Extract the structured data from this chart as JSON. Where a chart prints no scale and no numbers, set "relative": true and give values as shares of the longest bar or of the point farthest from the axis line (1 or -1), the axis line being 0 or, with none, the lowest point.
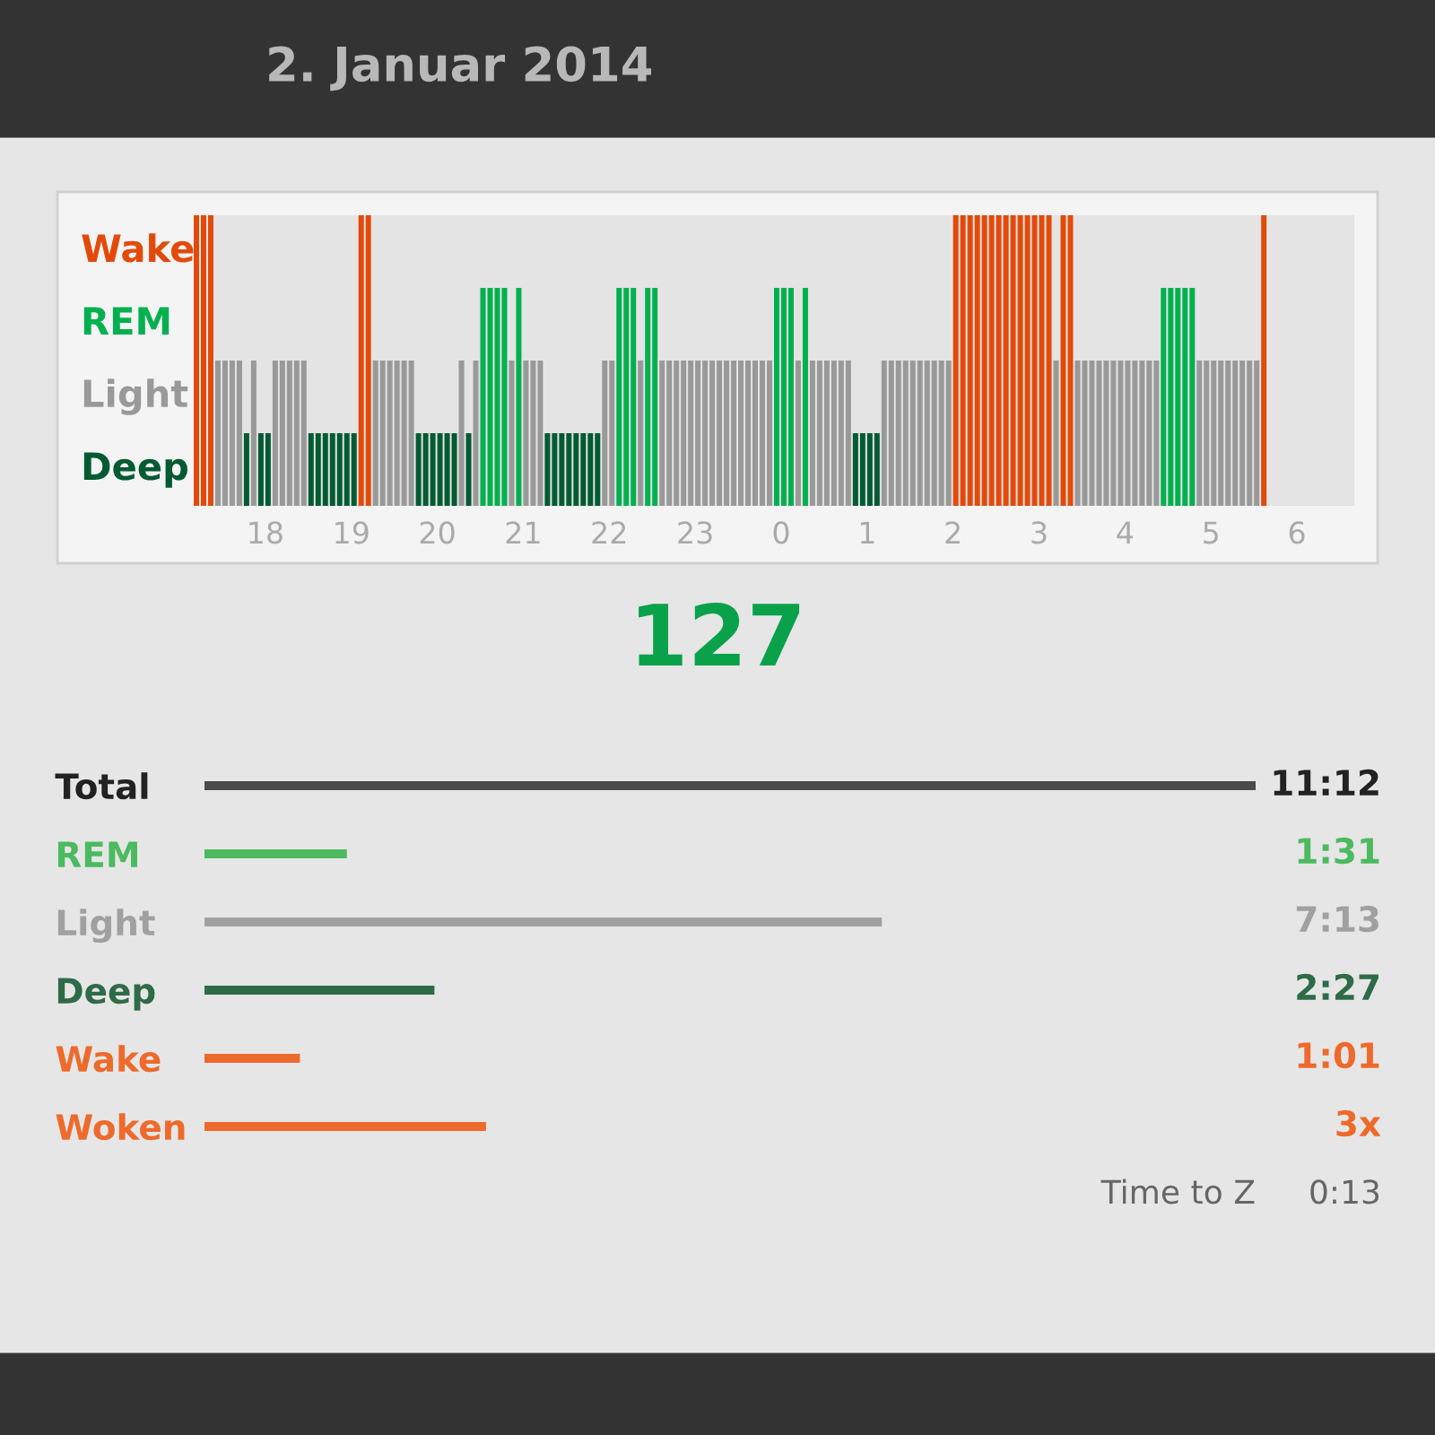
{
  "chart_data": [
    {
      "type": "bar",
      "title": "2. Januar 2014",
      "x": [
        "2014-01-01T17:10",
        "2014-01-01T17:15",
        "2014-01-01T17:20",
        "2014-01-01T17:25",
        "2014-01-01T17:30",
        "2014-01-01T17:35",
        "2014-01-01T17:40",
        "2014-01-01T17:45",
        "2014-01-01T17:50",
        "2014-01-01T17:55",
        "2014-01-01T18:00",
        "2014-01-01T18:05",
        "2014-01-01T18:10",
        "2014-01-01T18:15",
        "2014-01-01T18:20",
        "2014-01-01T18:25",
        "2014-01-01T18:30",
        "2014-01-01T18:35",
        "2014-01-01T18:40",
        "2014-01-01T18:45",
        "2014-01-01T18:50",
        "2014-01-01T18:55",
        "2014-01-01T19:00",
        "2014-01-01T19:05",
        "2014-01-01T19:10",
        "2014-01-01T19:15",
        "2014-01-01T19:20",
        "2014-01-01T19:25",
        "2014-01-01T19:30",
        "2014-01-01T19:35",
        "2014-01-01T19:40",
        "2014-01-01T19:45",
        "2014-01-01T19:50",
        "2014-01-01T19:55",
        "2014-01-01T20:00",
        "2014-01-01T20:05",
        "2014-01-01T20:10",
        "2014-01-01T20:15",
        "2014-01-01T20:20",
        "2014-01-01T20:25",
        "2014-01-01T20:30",
        "2014-01-01T20:35",
        "2014-01-01T20:40",
        "2014-01-01T20:45",
        "2014-01-01T20:50",
        "2014-01-01T20:55",
        "2014-01-01T21:00",
        "2014-01-01T21:05",
        "2014-01-01T21:10",
        "2014-01-01T21:15",
        "2014-01-01T21:20",
        "2014-01-01T21:25",
        "2014-01-01T21:30",
        "2014-01-01T21:35",
        "2014-01-01T21:40",
        "2014-01-01T21:45",
        "2014-01-01T21:50",
        "2014-01-01T21:55",
        "2014-01-01T22:00",
        "2014-01-01T22:05",
        "2014-01-01T22:10",
        "2014-01-01T22:15",
        "2014-01-01T22:20",
        "2014-01-01T22:25",
        "2014-01-01T22:30",
        "2014-01-01T22:35",
        "2014-01-01T22:40",
        "2014-01-01T22:45",
        "2014-01-01T22:50",
        "2014-01-01T22:55",
        "2014-01-01T23:00",
        "2014-01-01T23:05",
        "2014-01-01T23:10",
        "2014-01-01T23:15",
        "2014-01-01T23:20",
        "2014-01-01T23:25",
        "2014-01-01T23:30",
        "2014-01-01T23:35",
        "2014-01-01T23:40",
        "2014-01-01T23:45",
        "2014-01-01T23:50",
        "2014-01-01T23:55",
        "2014-01-02T00:00",
        "2014-01-02T00:05",
        "2014-01-02T00:10",
        "2014-01-02T00:15",
        "2014-01-02T00:20",
        "2014-01-02T00:25",
        "2014-01-02T00:30",
        "2014-01-02T00:35",
        "2014-01-02T00:40",
        "2014-01-02T00:45",
        "2014-01-02T00:50",
        "2014-01-02T00:55",
        "2014-01-02T01:00",
        "2014-01-02T01:05",
        "2014-01-02T01:10",
        "2014-01-02T01:15",
        "2014-01-02T01:20",
        "2014-01-02T01:25",
        "2014-01-02T01:30",
        "2014-01-02T01:35",
        "2014-01-02T01:40",
        "2014-01-02T01:45",
        "2014-01-02T01:50",
        "2014-01-02T01:55",
        "2014-01-02T02:00",
        "2014-01-02T02:05",
        "2014-01-02T02:10",
        "2014-01-02T02:15",
        "2014-01-02T02:20",
        "2014-01-02T02:25",
        "2014-01-02T02:30",
        "2014-01-02T02:35",
        "2014-01-02T02:40",
        "2014-01-02T02:45",
        "2014-01-02T02:50",
        "2014-01-02T02:55",
        "2014-01-02T03:00",
        "2014-01-02T03:05",
        "2014-01-02T03:10",
        "2014-01-02T03:15",
        "2014-01-02T03:20",
        "2014-01-02T03:25",
        "2014-01-02T03:30",
        "2014-01-02T03:35",
        "2014-01-02T03:40",
        "2014-01-02T03:45",
        "2014-01-02T03:50",
        "2014-01-02T03:55",
        "2014-01-02T04:00",
        "2014-01-02T04:05",
        "2014-01-02T04:10",
        "2014-01-02T04:15",
        "2014-01-02T04:20",
        "2014-01-02T04:25",
        "2014-01-02T04:30",
        "2014-01-02T04:35",
        "2014-01-02T04:40",
        "2014-01-02T04:45",
        "2014-01-02T04:50",
        "2014-01-02T04:55",
        "2014-01-02T05:00",
        "2014-01-02T05:05",
        "2014-01-02T05:10",
        "2014-01-02T05:15",
        "2014-01-02T05:20",
        "2014-01-02T05:25",
        "2014-01-02T05:30",
        "2014-01-02T05:35"
      ],
      "relative": true,
      "series": [
        {
          "name": "Wake",
          "color": "#e34a0a",
          "values": [
            1,
            1,
            1,
            null,
            null,
            null,
            null,
            null,
            null,
            null,
            null,
            null,
            null,
            null,
            null,
            null,
            null,
            null,
            null,
            null,
            null,
            null,
            null,
            1,
            1,
            null,
            null,
            null,
            null,
            null,
            null,
            null,
            null,
            null,
            null,
            null,
            null,
            null,
            null,
            null,
            null,
            null,
            null,
            null,
            null,
            null,
            null,
            null,
            null,
            null,
            null,
            null,
            null,
            null,
            null,
            null,
            null,
            null,
            null,
            null,
            null,
            null,
            null,
            null,
            null,
            null,
            null,
            null,
            null,
            null,
            null,
            null,
            null,
            null,
            null,
            null,
            null,
            null,
            null,
            null,
            null,
            null,
            null,
            null,
            null,
            null,
            null,
            null,
            null,
            null,
            null,
            null,
            null,
            null,
            null,
            null,
            null,
            null,
            null,
            null,
            null,
            null,
            null,
            null,
            null,
            null,
            1,
            1,
            1,
            1,
            1,
            1,
            1,
            1,
            1,
            1,
            1,
            1,
            1,
            1,
            null,
            1,
            1,
            null,
            null,
            null,
            null,
            null,
            null,
            null,
            null,
            null,
            null,
            null,
            null,
            null,
            null,
            null,
            null,
            null,
            null,
            null,
            null,
            null,
            null,
            null,
            null,
            null,
            null,
            1
          ]
        },
        {
          "name": "REM",
          "color": "#00b04f",
          "values": [
            null,
            null,
            null,
            null,
            null,
            null,
            null,
            null,
            null,
            null,
            null,
            null,
            null,
            null,
            null,
            null,
            null,
            null,
            null,
            null,
            null,
            null,
            null,
            null,
            null,
            null,
            null,
            null,
            null,
            null,
            null,
            null,
            null,
            null,
            null,
            null,
            null,
            null,
            null,
            null,
            0.75,
            0.75,
            0.75,
            0.75,
            null,
            0.75,
            null,
            null,
            null,
            null,
            null,
            null,
            null,
            null,
            null,
            null,
            null,
            null,
            null,
            0.75,
            0.75,
            0.75,
            null,
            0.75,
            0.75,
            null,
            null,
            null,
            null,
            null,
            null,
            null,
            null,
            null,
            null,
            null,
            null,
            null,
            null,
            null,
            null,
            0.75,
            0.75,
            0.75,
            null,
            0.75,
            null,
            null,
            null,
            null,
            null,
            null,
            null,
            null,
            null,
            null,
            null,
            null,
            null,
            null,
            null,
            null,
            null,
            null,
            null,
            null,
            null,
            null,
            null,
            null,
            null,
            null,
            null,
            null,
            null,
            null,
            null,
            null,
            null,
            null,
            null,
            null,
            null,
            null,
            null,
            null,
            null,
            null,
            null,
            null,
            null,
            null,
            null,
            null,
            null,
            0.75,
            0.75,
            0.75,
            0.75,
            0.75,
            null,
            null,
            null,
            null,
            null,
            null,
            null,
            null,
            null,
            null
          ]
        },
        {
          "name": "Light",
          "color": "#999999",
          "values": [
            null,
            null,
            null,
            0.5,
            0.5,
            0.5,
            0.5,
            null,
            0.5,
            null,
            null,
            0.5,
            0.5,
            0.5,
            0.5,
            0.5,
            null,
            null,
            null,
            null,
            null,
            null,
            null,
            null,
            null,
            0.5,
            0.5,
            0.5,
            0.5,
            0.5,
            0.5,
            null,
            null,
            null,
            null,
            null,
            null,
            0.5,
            null,
            0.5,
            null,
            null,
            null,
            null,
            0.5,
            null,
            0.5,
            0.5,
            0.5,
            null,
            null,
            null,
            null,
            null,
            null,
            null,
            null,
            0.5,
            0.5,
            null,
            null,
            null,
            0.5,
            null,
            null,
            0.5,
            0.5,
            0.5,
            0.5,
            0.5,
            0.5,
            0.5,
            0.5,
            0.5,
            0.5,
            0.5,
            0.5,
            0.5,
            0.5,
            0.5,
            0.5,
            null,
            null,
            null,
            0.5,
            null,
            0.5,
            0.5,
            0.5,
            0.5,
            0.5,
            0.5,
            null,
            null,
            null,
            null,
            0.5,
            0.5,
            0.5,
            0.5,
            0.5,
            0.5,
            0.5,
            0.5,
            0.5,
            0.5,
            null,
            null,
            null,
            null,
            null,
            null,
            null,
            null,
            null,
            null,
            null,
            null,
            null,
            null,
            0.5,
            null,
            null,
            0.5,
            0.5,
            0.5,
            0.5,
            0.5,
            0.5,
            0.5,
            0.5,
            0.5,
            0.5,
            0.5,
            0.5,
            null,
            null,
            null,
            null,
            null,
            0.5,
            0.5,
            0.5,
            0.5,
            0.5,
            0.5,
            0.5,
            0.5,
            0.5,
            null
          ]
        },
        {
          "name": "Deep",
          "color": "#005a32",
          "values": [
            null,
            null,
            null,
            null,
            null,
            null,
            null,
            0.25,
            null,
            0.25,
            0.25,
            null,
            null,
            null,
            null,
            null,
            0.25,
            0.25,
            0.25,
            0.25,
            0.25,
            0.25,
            0.25,
            null,
            null,
            null,
            null,
            null,
            null,
            null,
            null,
            0.25,
            0.25,
            0.25,
            0.25,
            0.25,
            0.25,
            null,
            0.25,
            null,
            null,
            null,
            null,
            null,
            null,
            null,
            null,
            null,
            null,
            0.25,
            0.25,
            0.25,
            0.25,
            0.25,
            0.25,
            0.25,
            0.25,
            null,
            null,
            null,
            null,
            null,
            null,
            null,
            null,
            null,
            null,
            null,
            null,
            null,
            null,
            null,
            null,
            null,
            null,
            null,
            null,
            null,
            null,
            null,
            null,
            null,
            null,
            null,
            null,
            null,
            null,
            null,
            null,
            null,
            null,
            null,
            0.25,
            0.25,
            0.25,
            0.25,
            null,
            null,
            null,
            null,
            null,
            null,
            null,
            null,
            null,
            null,
            null,
            null,
            null,
            null,
            null,
            null,
            null,
            null,
            null,
            null,
            null,
            null,
            null,
            null,
            null,
            null,
            null,
            null,
            null,
            null,
            null,
            null,
            null,
            null,
            null,
            null,
            null,
            null,
            null,
            null,
            null,
            null,
            null,
            null,
            null,
            null,
            null,
            null,
            null,
            null,
            null,
            null,
            null,
            null
          ]
        }
      ],
      "xlim": [
        "2014-01-01T17:10",
        "2014-01-02T06:40"
      ],
      "xticks": [
        {
          "value": "2014-01-01T18:00",
          "label": "18"
        },
        {
          "value": "2014-01-01T19:00",
          "label": "19"
        },
        {
          "value": "2014-01-01T20:00",
          "label": "20"
        },
        {
          "value": "2014-01-01T21:00",
          "label": "21"
        },
        {
          "value": "2014-01-01T22:00",
          "label": "22"
        },
        {
          "value": "2014-01-01T23:00",
          "label": "23"
        },
        {
          "value": "2014-01-02T00:00",
          "label": "0"
        },
        {
          "value": "2014-01-02T01:00",
          "label": "1"
        },
        {
          "value": "2014-01-02T02:00",
          "label": "2"
        },
        {
          "value": "2014-01-02T03:00",
          "label": "3"
        },
        {
          "value": "2014-01-02T04:00",
          "label": "4"
        },
        {
          "value": "2014-01-02T05:00",
          "label": "5"
        },
        {
          "value": "2014-01-02T06:00",
          "label": "6"
        }
      ],
      "grid": false
    },
    {
      "type": "bar",
      "orientation": "horizontal",
      "categories": [
        "Total",
        "REM",
        "Light",
        "Deep",
        "Wake",
        "Woken"
      ],
      "values": [
        11.2,
        1.517,
        7.217,
        2.45,
        1.017,
        3
      ],
      "colors": [
        "#4a4a4a",
        "#4cba5f",
        "#a0a0a0",
        "#2e6b47",
        "#ee6a2c",
        "#ee6a2c"
      ],
      "value_labels": [
        "11:12",
        "1:31",
        "7:13",
        "2:27",
        "1:01",
        "3x"
      ],
      "annotations": [
        "127",
        "Time to Z",
        "0:13"
      ]
    }
  ]
}
